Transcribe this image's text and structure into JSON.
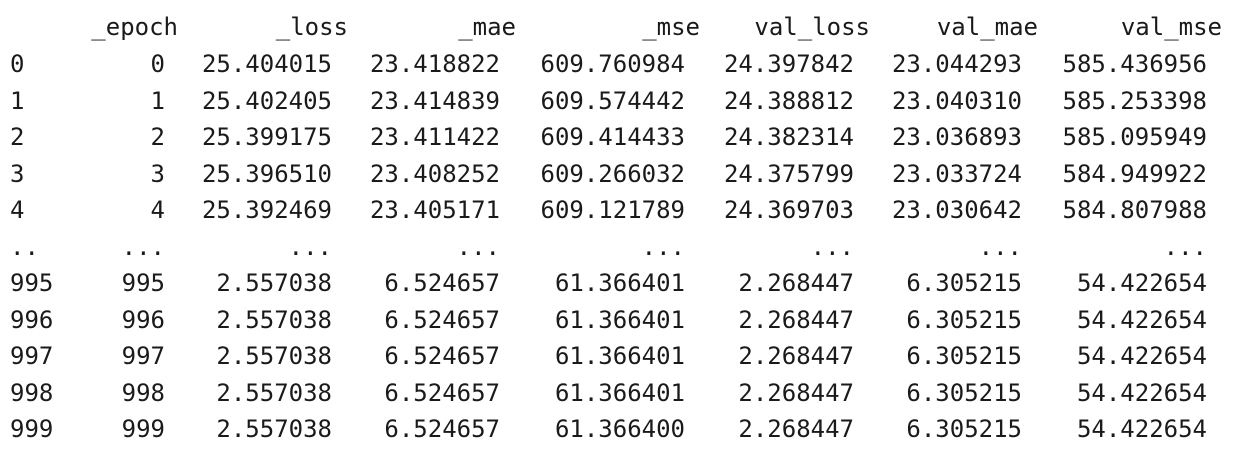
{
  "dataframe": {
    "columns": [
      "_epoch",
      "_loss",
      "_mae",
      "_mse",
      "val_loss",
      "val_mae",
      "val_mse"
    ],
    "rows": [
      {
        "index": "0",
        "cells": [
          "0",
          "25.404015",
          "23.418822",
          "609.760984",
          "24.397842",
          "23.044293",
          "585.436956"
        ]
      },
      {
        "index": "1",
        "cells": [
          "1",
          "25.402405",
          "23.414839",
          "609.574442",
          "24.388812",
          "23.040310",
          "585.253398"
        ]
      },
      {
        "index": "2",
        "cells": [
          "2",
          "25.399175",
          "23.411422",
          "609.414433",
          "24.382314",
          "23.036893",
          "585.095949"
        ]
      },
      {
        "index": "3",
        "cells": [
          "3",
          "25.396510",
          "23.408252",
          "609.266032",
          "24.375799",
          "23.033724",
          "584.949922"
        ]
      },
      {
        "index": "4",
        "cells": [
          "4",
          "25.392469",
          "23.405171",
          "609.121789",
          "24.369703",
          "23.030642",
          "584.807988"
        ]
      },
      {
        "index": "..",
        "cells": [
          "...",
          "...",
          "...",
          "...",
          "...",
          "...",
          "..."
        ]
      },
      {
        "index": "995",
        "cells": [
          "995",
          "2.557038",
          "6.524657",
          "61.366401",
          "2.268447",
          "6.305215",
          "54.422654"
        ]
      },
      {
        "index": "996",
        "cells": [
          "996",
          "2.557038",
          "6.524657",
          "61.366401",
          "2.268447",
          "6.305215",
          "54.422654"
        ]
      },
      {
        "index": "997",
        "cells": [
          "997",
          "2.557038",
          "6.524657",
          "61.366401",
          "2.268447",
          "6.305215",
          "54.422654"
        ]
      },
      {
        "index": "998",
        "cells": [
          "998",
          "2.557038",
          "6.524657",
          "61.366401",
          "2.268447",
          "6.305215",
          "54.422654"
        ]
      },
      {
        "index": "999",
        "cells": [
          "999",
          "2.557038",
          "6.524657",
          "61.366400",
          "2.268447",
          "6.305215",
          "54.422654"
        ]
      }
    ]
  }
}
